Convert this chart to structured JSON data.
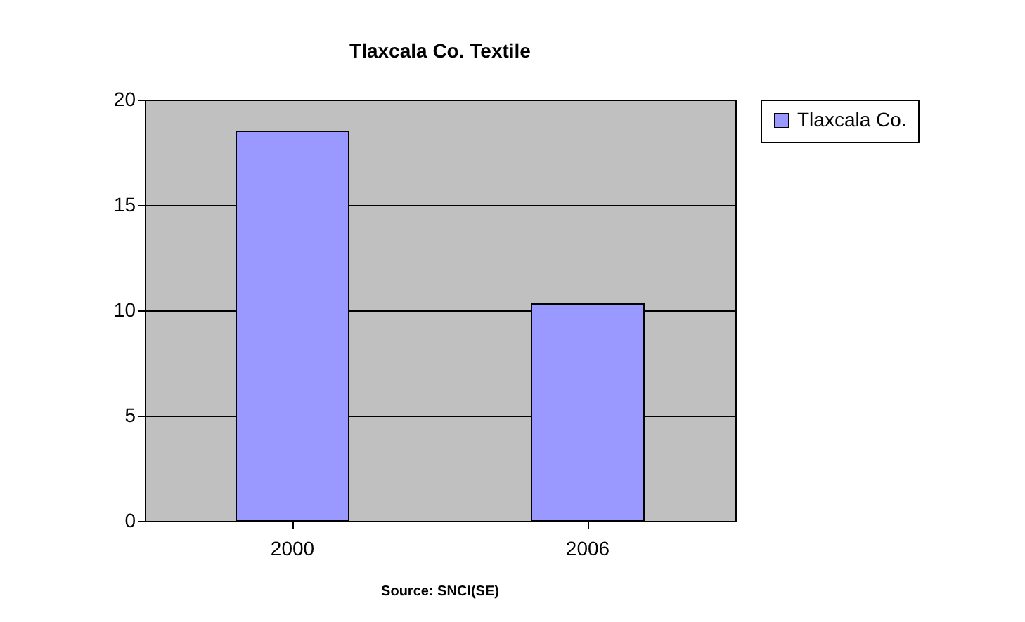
{
  "chart_data": {
    "type": "bar",
    "title": "Tlaxcala Co. Textile",
    "categories": [
      "2000",
      "2006"
    ],
    "series": [
      {
        "name": "Tlaxcala Co.",
        "color": "#9999ff",
        "values": [
          18.5,
          10.3
        ]
      }
    ],
    "ylim": [
      0,
      20
    ],
    "yticks": [
      0,
      5,
      10,
      15,
      20
    ],
    "grid": "y",
    "legend": "right",
    "annotations": [
      "Source: SNCI(SE)"
    ]
  }
}
